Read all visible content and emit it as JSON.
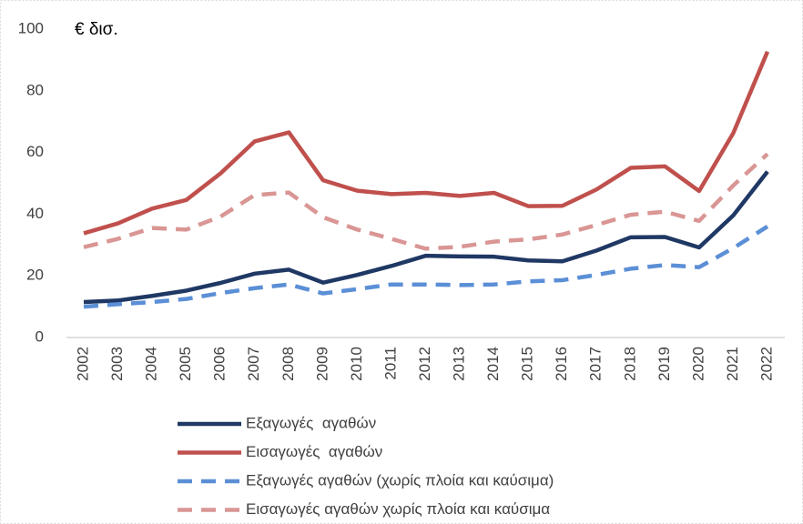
{
  "chart_data": {
    "type": "line",
    "annotation": "€ δισ.",
    "categories": [
      "2002",
      "2003",
      "2004",
      "2005",
      "2006",
      "2007",
      "2008",
      "2009",
      "2010",
      "2011",
      "2012",
      "2013",
      "2014",
      "2015",
      "2016",
      "2017",
      "2018",
      "2019",
      "2020",
      "2021",
      "2022"
    ],
    "series": [
      {
        "name": "Εξαγωγές  αγαθών",
        "color": "#1f3864",
        "dashed": false,
        "values": [
          11.5,
          12,
          13.5,
          15.2,
          17.7,
          20.7,
          22,
          17.8,
          20.3,
          23.2,
          26.5,
          26.3,
          26.2,
          25,
          24.7,
          28.2,
          32.5,
          32.6,
          29.2,
          39.6,
          53.8
        ]
      },
      {
        "name": "Εισαγωγές  αγαθών",
        "color": "#c0504d",
        "dashed": false,
        "values": [
          33.8,
          37,
          41.8,
          44.6,
          53.2,
          63.6,
          66.5,
          51,
          47.6,
          46.5,
          46.9,
          45.9,
          46.9,
          42.6,
          42.7,
          48,
          55,
          55.5,
          47.5,
          66.3,
          92.7
        ]
      },
      {
        "name": "Εξαγωγές αγαθών (χωρίς πλοία και καύσιμα)",
        "color": "#5b8fd6",
        "dashed": true,
        "values": [
          10,
          10.8,
          11.5,
          12.5,
          14.4,
          16,
          17.2,
          14.3,
          15.7,
          17.2,
          17.2,
          17,
          17.2,
          18.2,
          18.6,
          20.3,
          22.3,
          23.5,
          22.8,
          29,
          36
        ]
      },
      {
        "name": "Εισαγωγές αγαθών χωρίς πλοία και καύσιμα",
        "color": "#d99694",
        "dashed": true,
        "values": [
          29.3,
          32,
          35.5,
          35,
          39.2,
          46.2,
          47,
          39,
          35,
          32,
          28.8,
          29.4,
          31.1,
          31.8,
          33.4,
          36.5,
          39.8,
          40.8,
          37.8,
          49.3,
          59.5
        ]
      }
    ],
    "ylim": [
      0,
      100
    ],
    "yticks": [
      0,
      20,
      40,
      60,
      80,
      100
    ],
    "grid": false
  }
}
